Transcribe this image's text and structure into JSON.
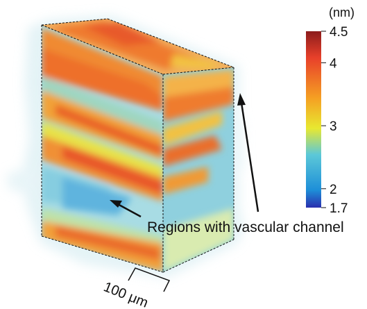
{
  "colorbar": {
    "unit_label": "(nm)",
    "ticks": [
      {
        "label": "4.5",
        "value": 4.5
      },
      {
        "label": "4",
        "value": 4.0
      },
      {
        "label": "3",
        "value": 3.0
      },
      {
        "label": "2",
        "value": 2.0
      },
      {
        "label": "1.7",
        "value": 1.7
      }
    ],
    "range": [
      1.7,
      4.5
    ],
    "colors": [
      "#2a2fae",
      "#1e8fd8",
      "#5cc8d8",
      "#e8e830",
      "#f5a023",
      "#e8402a",
      "#8c1c1c"
    ]
  },
  "annotation": {
    "label": "Regions with vascular channel"
  },
  "scale_bar": {
    "label": "100 μm"
  }
}
